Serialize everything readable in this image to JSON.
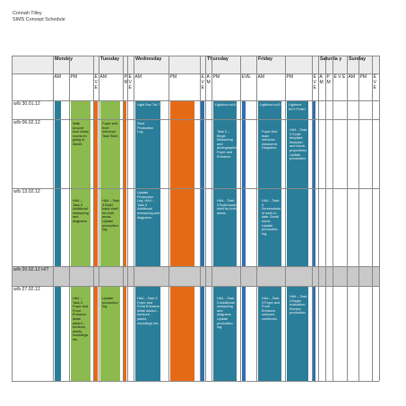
{
  "document": {
    "author": "Connah Tilley",
    "title": "SIMS Concept Schedule"
  },
  "colors": {
    "green": "#8cba4e",
    "orange": "#e56a16",
    "teal": "#2b7e99",
    "blue": "#2e6fb0",
    "header_fill": "#ececec",
    "break_fill": "#c9c9c9"
  },
  "days": [
    {
      "name": "Monday"
    },
    {
      "name": "Tuesday"
    },
    {
      "name": "Wednesday"
    },
    {
      "name": "Thursday"
    },
    {
      "name": "Friday"
    },
    {
      "name": "Saturda y"
    },
    {
      "name": "Sunday"
    }
  ],
  "periods": {
    "am": "AM",
    "pm": "PM",
    "eve": "E V E",
    "eve_word": "EVE",
    "pm_short": "P M",
    "am_short": "A M"
  },
  "weeks": [
    {
      "label": "w/b 30.01.12"
    },
    {
      "label": "w/b 06.02.12"
    },
    {
      "label": "w/b 13.02.12"
    },
    {
      "label": "w/b 20.02.12 H/T"
    },
    {
      "label": "w/b 27.02.12"
    }
  ],
  "tasks": {
    "w1_wed_am": "Light Box Tut.7",
    "w1_thu_pm": "Lightbox tut.8",
    "w1_fri_am": "Lightbox tut.9",
    "w1_fri_pm": "Lightbox tut.9 Finish",
    "w2_mon_pm": "Walk Around And chose rooms im going to Model.",
    "w2_tue_am": "Foyer and front entrance. Task Start.",
    "w2_wed_am": "Start Production Log.",
    "w2_thu_pm": "Task 2 – Begin Measuring and photographing Foyer and Entrance.",
    "w2_fri_am": "Foyer And main entrance measured Diagrams.",
    "w2_fri_pm": "HA4 – Task 3 Scale template floorplan and check proportions Update production.",
    "w3_mon_pm": "HA4 – Task 3 Additional measuring and diagrams.",
    "w3_tue_am": "HA4 – Task 3 Build basic shell for both areas. Update production log.",
    "w3_wed_am": "Update Production Log. HA4 – Task 3 Additional measuring and diagrams.",
    "w3_thu_pm": "HA4 – Task 3 Build basic shell for both areas.",
    "w3_fri_am": "HA4 – Task 3 Screenshots of work to date. Email home. Update production log.",
    "w5_mon_pm": "HA4 – Task 3 Foyer and Front Entrance detail added – furniture, plants, mouldings etc.",
    "w5_tue_am": "Update production log.",
    "w5_wed_am": "HA4 – Task 3 Foyer and Front Entrance detail added – furniture , plants, mouldings etc.",
    "w5_thu_pm": "HA4 – Task 3 Additional measuring and diagrams Update production log.",
    "w5_fri_am": "HA4 – Task 3 Foyer and Front Entrance surfaces confirmed.",
    "w5_fri_pm": "HA4 – Task 3 Begin evaluation. Review production"
  }
}
